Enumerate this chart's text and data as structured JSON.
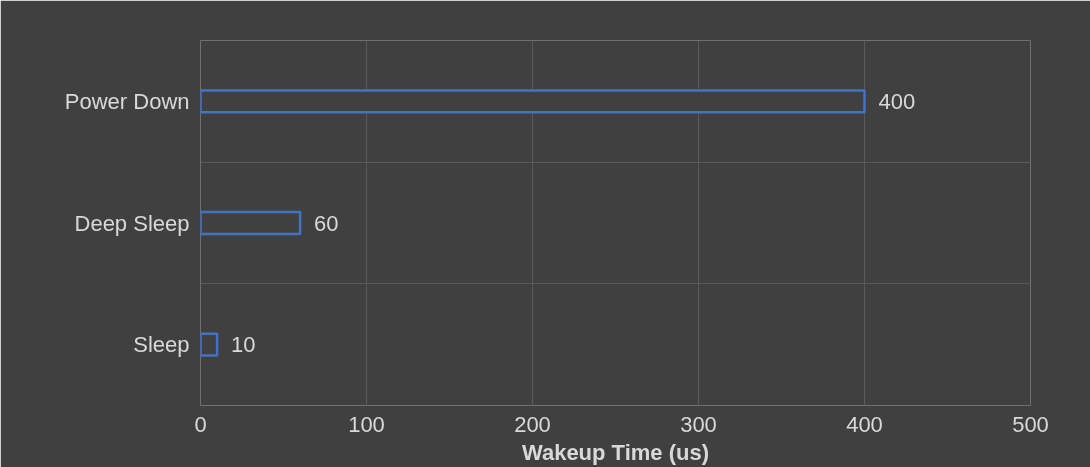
{
  "chart_data": {
    "type": "bar",
    "orientation": "horizontal",
    "categories": [
      "Power Down",
      "Deep Sleep",
      "Sleep"
    ],
    "values": [
      400,
      60,
      10
    ],
    "color": "#4472c4",
    "xlabel": "Wakeup Time (us)",
    "xlim": [
      0,
      500
    ],
    "xticks": [
      0,
      100,
      200,
      300,
      400,
      500
    ],
    "grid": true,
    "data_labels": true
  }
}
